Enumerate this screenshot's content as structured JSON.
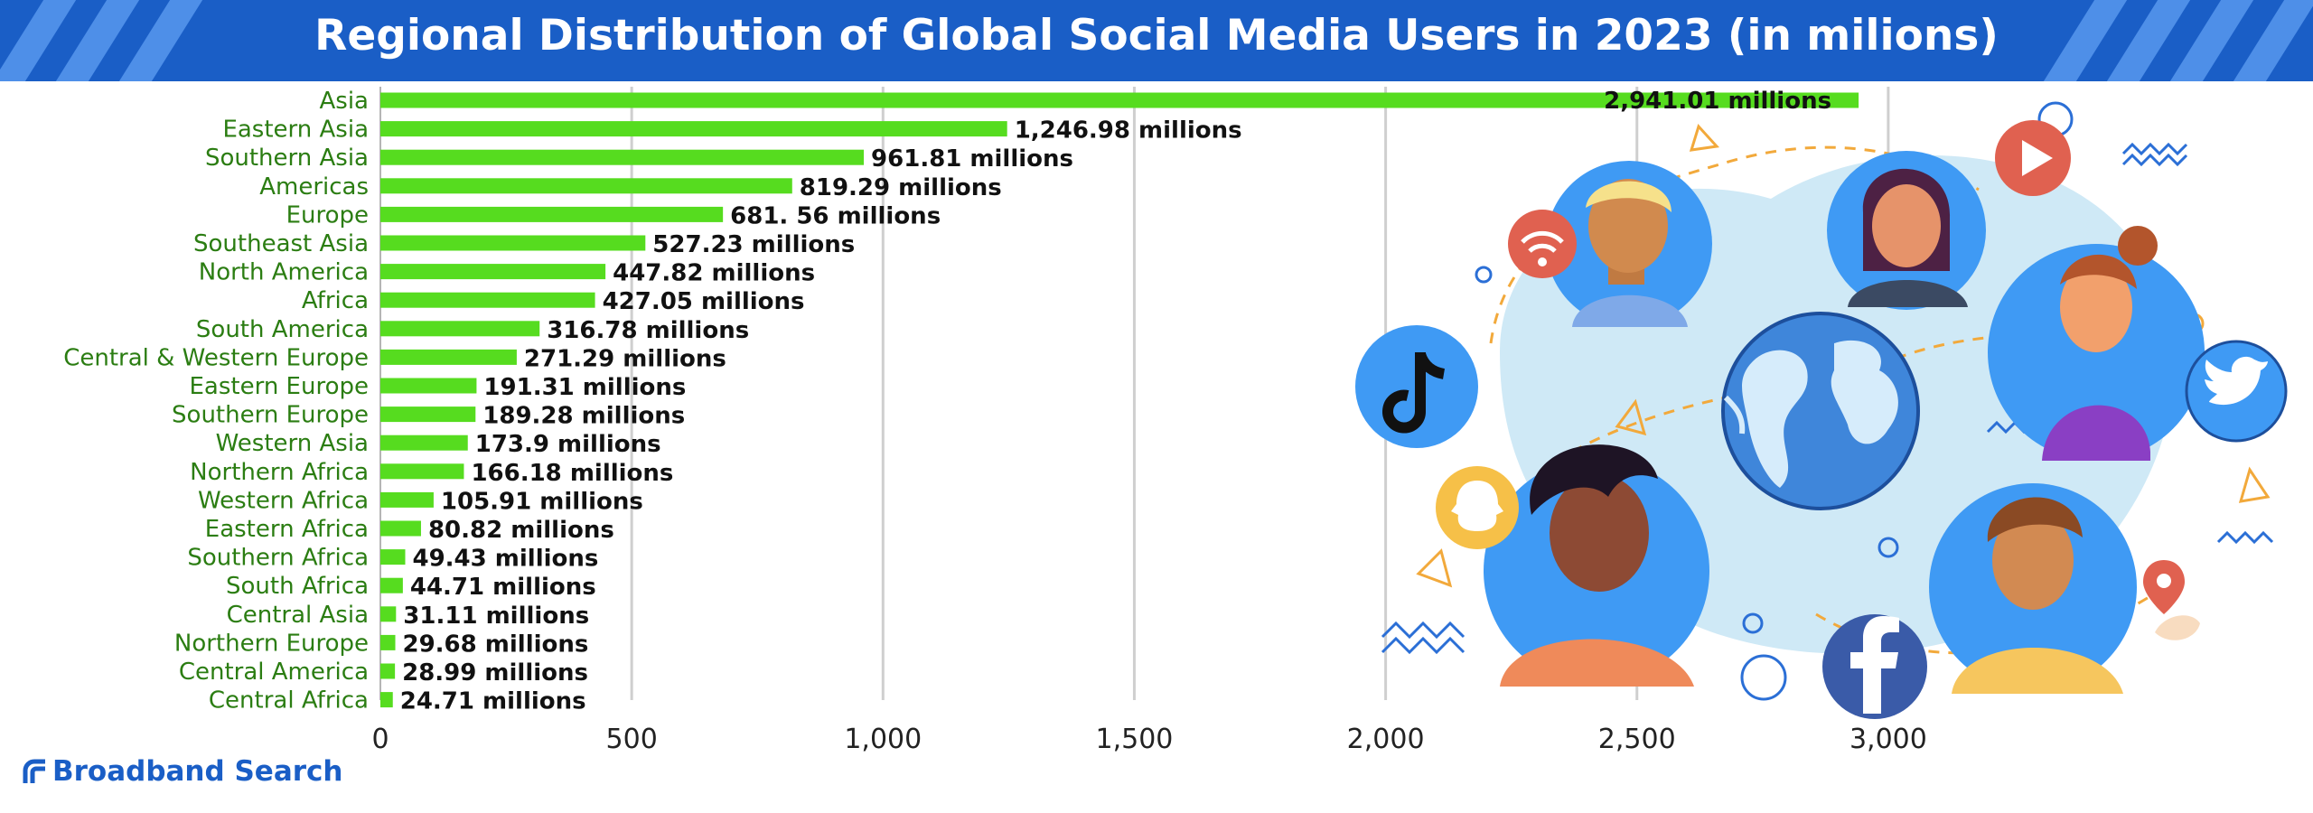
{
  "header": {
    "title": "Regional Distribution of Global Social Media Users in 2023 (in milions)"
  },
  "brand": {
    "name": "Broadband Search"
  },
  "colors": {
    "header_bg": "#1a5ec6",
    "bar": "#56dc1f",
    "category_text": "#2b7d12",
    "value_text": "#111111",
    "grid": "#cfcfcf"
  },
  "chart_data": {
    "type": "bar",
    "orientation": "horizontal",
    "title": "Regional Distribution of Global Social Media Users in 2023 (in milions)",
    "xlabel": "",
    "ylabel": "",
    "xlim": [
      0,
      3000
    ],
    "grid": true,
    "legend": "none",
    "xticks": [
      {
        "value": 0,
        "label": "0"
      },
      {
        "value": 500,
        "label": "500"
      },
      {
        "value": 1000,
        "label": "1,000"
      },
      {
        "value": 1500,
        "label": "1,500"
      },
      {
        "value": 2000,
        "label": "2,000"
      },
      {
        "value": 2500,
        "label": "2,500"
      },
      {
        "value": 3000,
        "label": "3,000"
      }
    ],
    "categories": [
      "Asia",
      "Eastern Asia",
      "Southern Asia",
      "Americas",
      "Europe",
      "Southeast Asia",
      "North America",
      "Africa",
      "South America",
      "Central & Western Europe",
      "Eastern Europe",
      "Southern Europe",
      "Western Asia",
      "Northern Africa",
      "Western Africa",
      "Eastern Africa",
      "Southern Africa",
      "South Africa",
      "Central Asia",
      "Northern Europe",
      "Central America",
      "Central Africa"
    ],
    "values": [
      2941.01,
      1246.98,
      961.81,
      819.29,
      681.56,
      527.23,
      447.82,
      427.05,
      316.78,
      271.29,
      191.31,
      189.28,
      173.9,
      166.18,
      105.91,
      80.82,
      49.43,
      44.71,
      31.11,
      29.68,
      28.99,
      24.71
    ],
    "labels": [
      "2,941.01 millions",
      "1,246.98 millions",
      "961.81 millions",
      "819.29 millions",
      "681. 56 millions",
      "527.23 millions",
      "447.82 millions",
      "427.05 millions",
      "316.78 millions",
      "271.29 millions",
      "191.31 millions",
      "189.28 millions",
      "173.9 millions",
      "166.18 millions",
      "105.91 millions",
      "80.82 millions",
      "49.43 millions",
      "44.71 millions",
      "31.11 millions",
      "29.68 millions",
      "28.99 millions",
      "24.71 millions"
    ]
  },
  "illustration": {
    "icons": [
      "wifi-icon",
      "youtube-play-icon",
      "tiktok-icon",
      "twitter-bird-icon",
      "snapchat-ghost-icon",
      "facebook-icon",
      "location-pin-icon",
      "globe-icon"
    ]
  }
}
